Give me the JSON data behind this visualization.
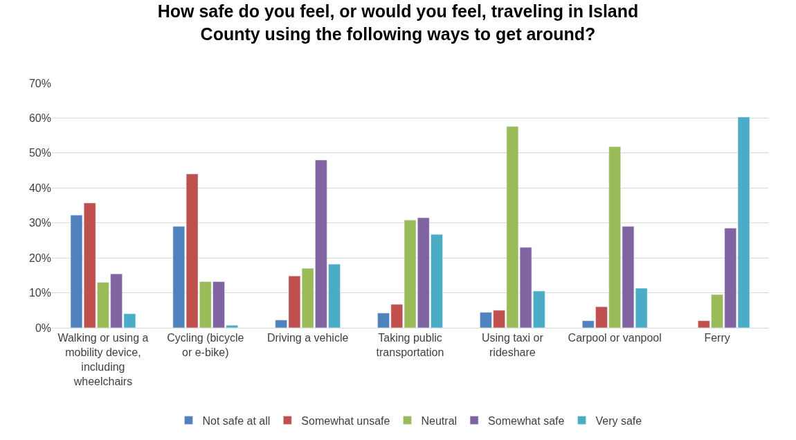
{
  "chart_data": {
    "type": "bar",
    "title": "How safe do you feel, or would you feel, traveling in Island County using the following ways to get around?",
    "categories": [
      "Walking or using a mobility device, including wheelchairs",
      "Cycling (bicycle or e-bike)",
      "Driving a vehicle",
      "Taking public transportation",
      "Using taxi or rideshare",
      "Carpool or vanpool",
      "Ferry"
    ],
    "series": [
      {
        "name": "Not safe at all",
        "color": "#4f81bd",
        "values": [
          32.2,
          29,
          2.2,
          4.2,
          4.4,
          2,
          null
        ]
      },
      {
        "name": "Somewhat unsafe",
        "color": "#c0504d",
        "values": [
          35.7,
          44,
          14.8,
          6.7,
          5,
          6,
          2
        ]
      },
      {
        "name": "Neutral",
        "color": "#9bbb59",
        "values": [
          13,
          13.2,
          17,
          30.8,
          57.6,
          51.8,
          9.5
        ]
      },
      {
        "name": "Somewhat safe",
        "color": "#8064a2",
        "values": [
          15.4,
          13.2,
          48,
          31.5,
          23,
          29,
          28.5
        ]
      },
      {
        "name": "Very safe",
        "color": "#4bacc6",
        "values": [
          4,
          0.7,
          18.2,
          26.7,
          10.5,
          11.3,
          60.3
        ]
      }
    ],
    "ylim": [
      0,
      70
    ],
    "yticks": [
      {
        "value": 0,
        "label": "0%"
      },
      {
        "value": 10,
        "label": "10%"
      },
      {
        "value": 20,
        "label": "20%"
      },
      {
        "value": 30,
        "label": "30%"
      },
      {
        "value": 40,
        "label": "40%"
      },
      {
        "value": 50,
        "label": "50%"
      },
      {
        "value": 60,
        "label": "60%"
      },
      {
        "value": 70,
        "label": "70%"
      }
    ],
    "grid": "y",
    "legend": "bottom"
  }
}
